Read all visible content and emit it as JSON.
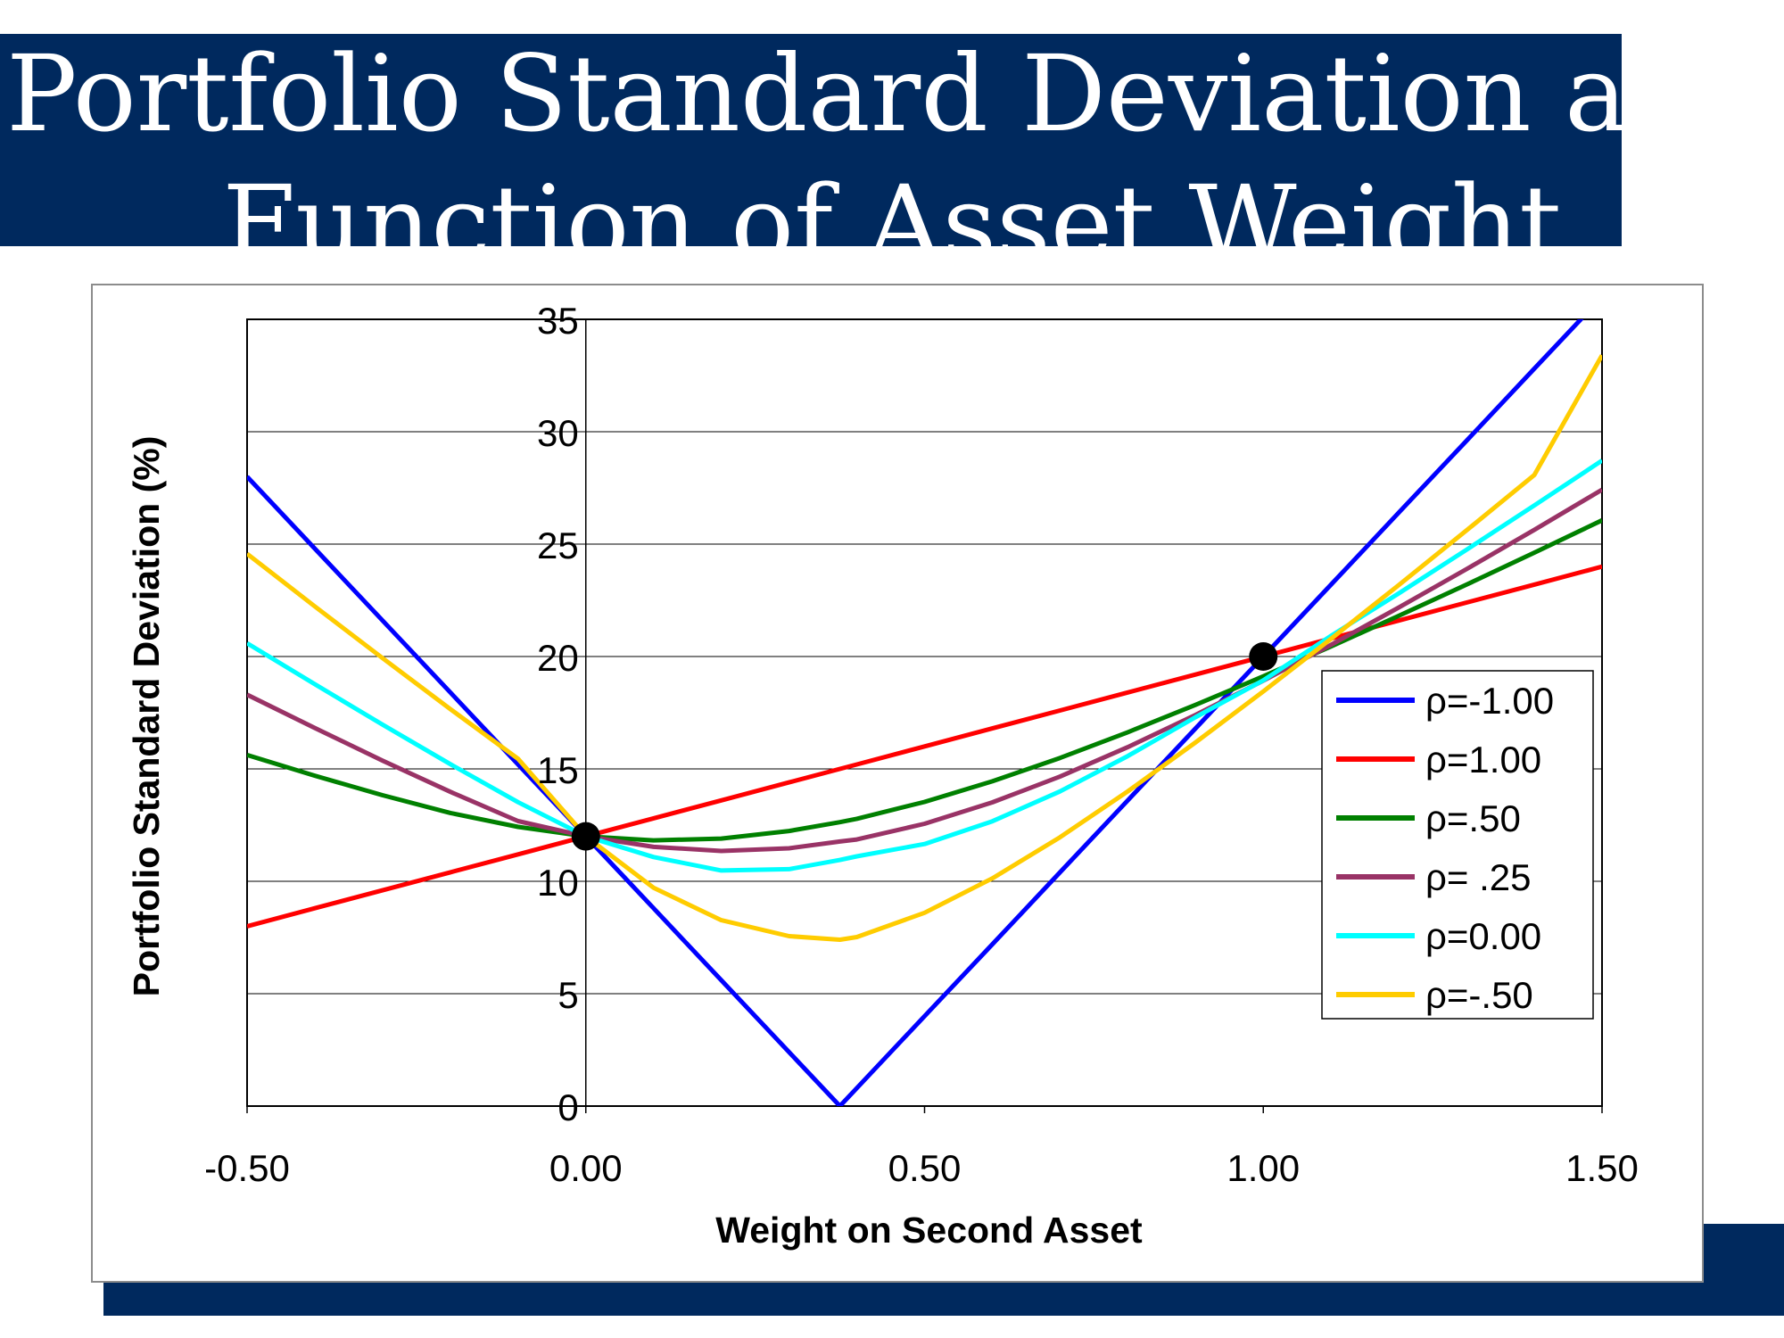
{
  "slide": {
    "title_line1": "Portfolio Standard Deviation as a",
    "title_line2": "Function of Asset Weight",
    "colors": {
      "banner": "#00295e",
      "banner_text": "#ffffff"
    }
  },
  "chart_data": {
    "type": "line",
    "title": "",
    "xlabel": "Weight on Second Asset",
    "ylabel": "Portfolio Standard Deviation (%)",
    "xlim": [
      -0.5,
      1.5
    ],
    "ylim": [
      0,
      35
    ],
    "x_ticks": [
      "-0.50",
      "0.00",
      "0.50",
      "1.00",
      "1.50"
    ],
    "y_ticks": [
      "0",
      "5",
      "10",
      "15",
      "20",
      "25",
      "30",
      "35"
    ],
    "grid": true,
    "legend_position": "right",
    "x": [
      -0.5,
      -0.4,
      -0.3,
      -0.2,
      -0.1,
      0.0,
      0.1,
      0.2,
      0.3,
      0.375,
      0.4,
      0.5,
      0.6,
      0.7,
      0.8,
      0.9,
      1.0,
      1.1,
      1.2,
      1.3,
      1.4,
      1.5
    ],
    "series": [
      {
        "name": "ρ=-1.00",
        "color": "#0000ff",
        "values": [
          28.0,
          24.8,
          21.6,
          18.4,
          15.2,
          12.0,
          8.8,
          5.6,
          2.4,
          0.0,
          0.8,
          4.0,
          7.2,
          10.4,
          13.6,
          16.8,
          20.0,
          23.2,
          26.4,
          29.6,
          32.8,
          36.0
        ]
      },
      {
        "name": "ρ=1.00",
        "color": "#ff0000",
        "values": [
          8.0,
          8.8,
          9.6,
          10.4,
          11.2,
          12.0,
          12.8,
          13.6,
          14.4,
          15.0,
          15.2,
          16.0,
          16.8,
          17.6,
          18.4,
          19.2,
          20.0,
          20.8,
          21.6,
          22.4,
          23.2,
          24.0
        ]
      },
      {
        "name": "ρ=.50",
        "color": "#008000",
        "values": [
          15.62,
          14.7,
          13.83,
          13.04,
          12.42,
          12.0,
          11.82,
          11.9,
          12.24,
          12.63,
          12.78,
          13.53,
          14.45,
          15.49,
          16.63,
          17.85,
          19.12,
          20.45,
          21.81,
          23.2,
          24.62,
          26.06
        ]
      },
      {
        "name": "ρ= .25",
        "color": "#993366",
        "values": [
          18.3,
          16.82,
          15.37,
          13.98,
          12.68,
          12.0,
          11.53,
          11.35,
          11.47,
          11.77,
          11.86,
          12.56,
          13.51,
          14.66,
          15.97,
          17.4,
          18.93,
          20.52,
          22.18,
          23.89,
          25.63,
          27.42
        ]
      },
      {
        "name": "ρ=0.00",
        "color": "#00ffff",
        "values": [
          20.59,
          18.77,
          16.97,
          15.21,
          13.52,
          12.0,
          11.08,
          10.48,
          10.54,
          10.95,
          11.11,
          11.66,
          12.67,
          14.0,
          15.57,
          17.3,
          18.94,
          20.92,
          22.81,
          24.75,
          26.72,
          28.72
        ]
      },
      {
        "name": "ρ=-.50",
        "color": "#ffcc00",
        "values": [
          24.57,
          22.23,
          19.93,
          17.66,
          15.45,
          12.0,
          9.71,
          8.27,
          7.56,
          7.4,
          7.52,
          8.6,
          10.13,
          11.96,
          14.0,
          16.18,
          18.45,
          20.79,
          23.18,
          25.61,
          28.07,
          33.4
        ]
      }
    ],
    "markers": [
      {
        "x": 0.0,
        "y": 12.0
      },
      {
        "x": 1.0,
        "y": 20.0
      }
    ]
  }
}
